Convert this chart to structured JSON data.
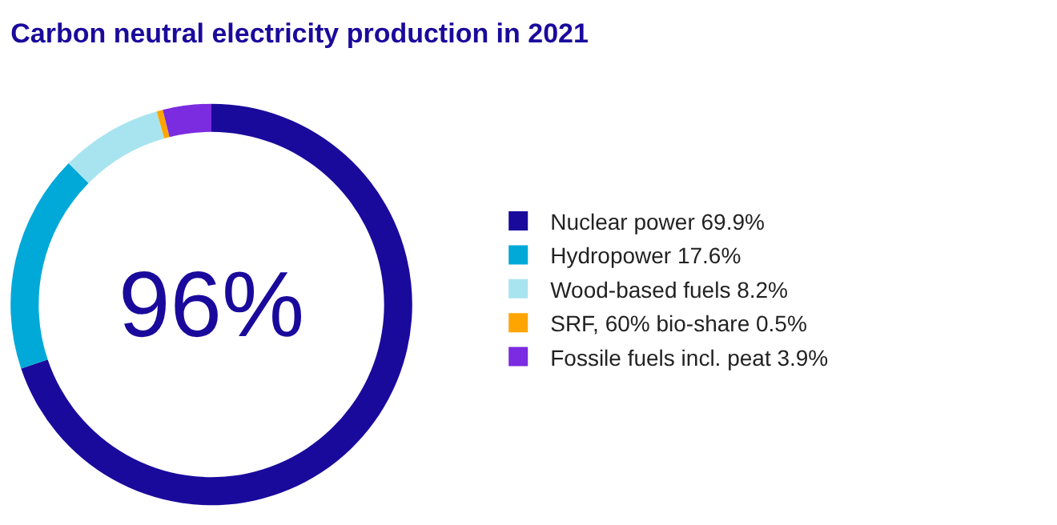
{
  "chart_data": {
    "type": "donut",
    "title": "Carbon neutral electricity production in 2021",
    "categories": [
      "Nuclear power 69.9%",
      "Hydropower 17.6%",
      "Wood-based fuels 8.2%",
      "SRF, 60% bio-share 0.5%",
      "Fossile fuels incl. peat 3.9%"
    ],
    "values": [
      69.9,
      17.6,
      8.2,
      0.5,
      3.9
    ],
    "colors": [
      "#1a0a9c",
      "#00a9d8",
      "#a8e4f0",
      "#ffa500",
      "#7b2be0"
    ],
    "annotations": [
      "96%"
    ],
    "legend": "right"
  }
}
